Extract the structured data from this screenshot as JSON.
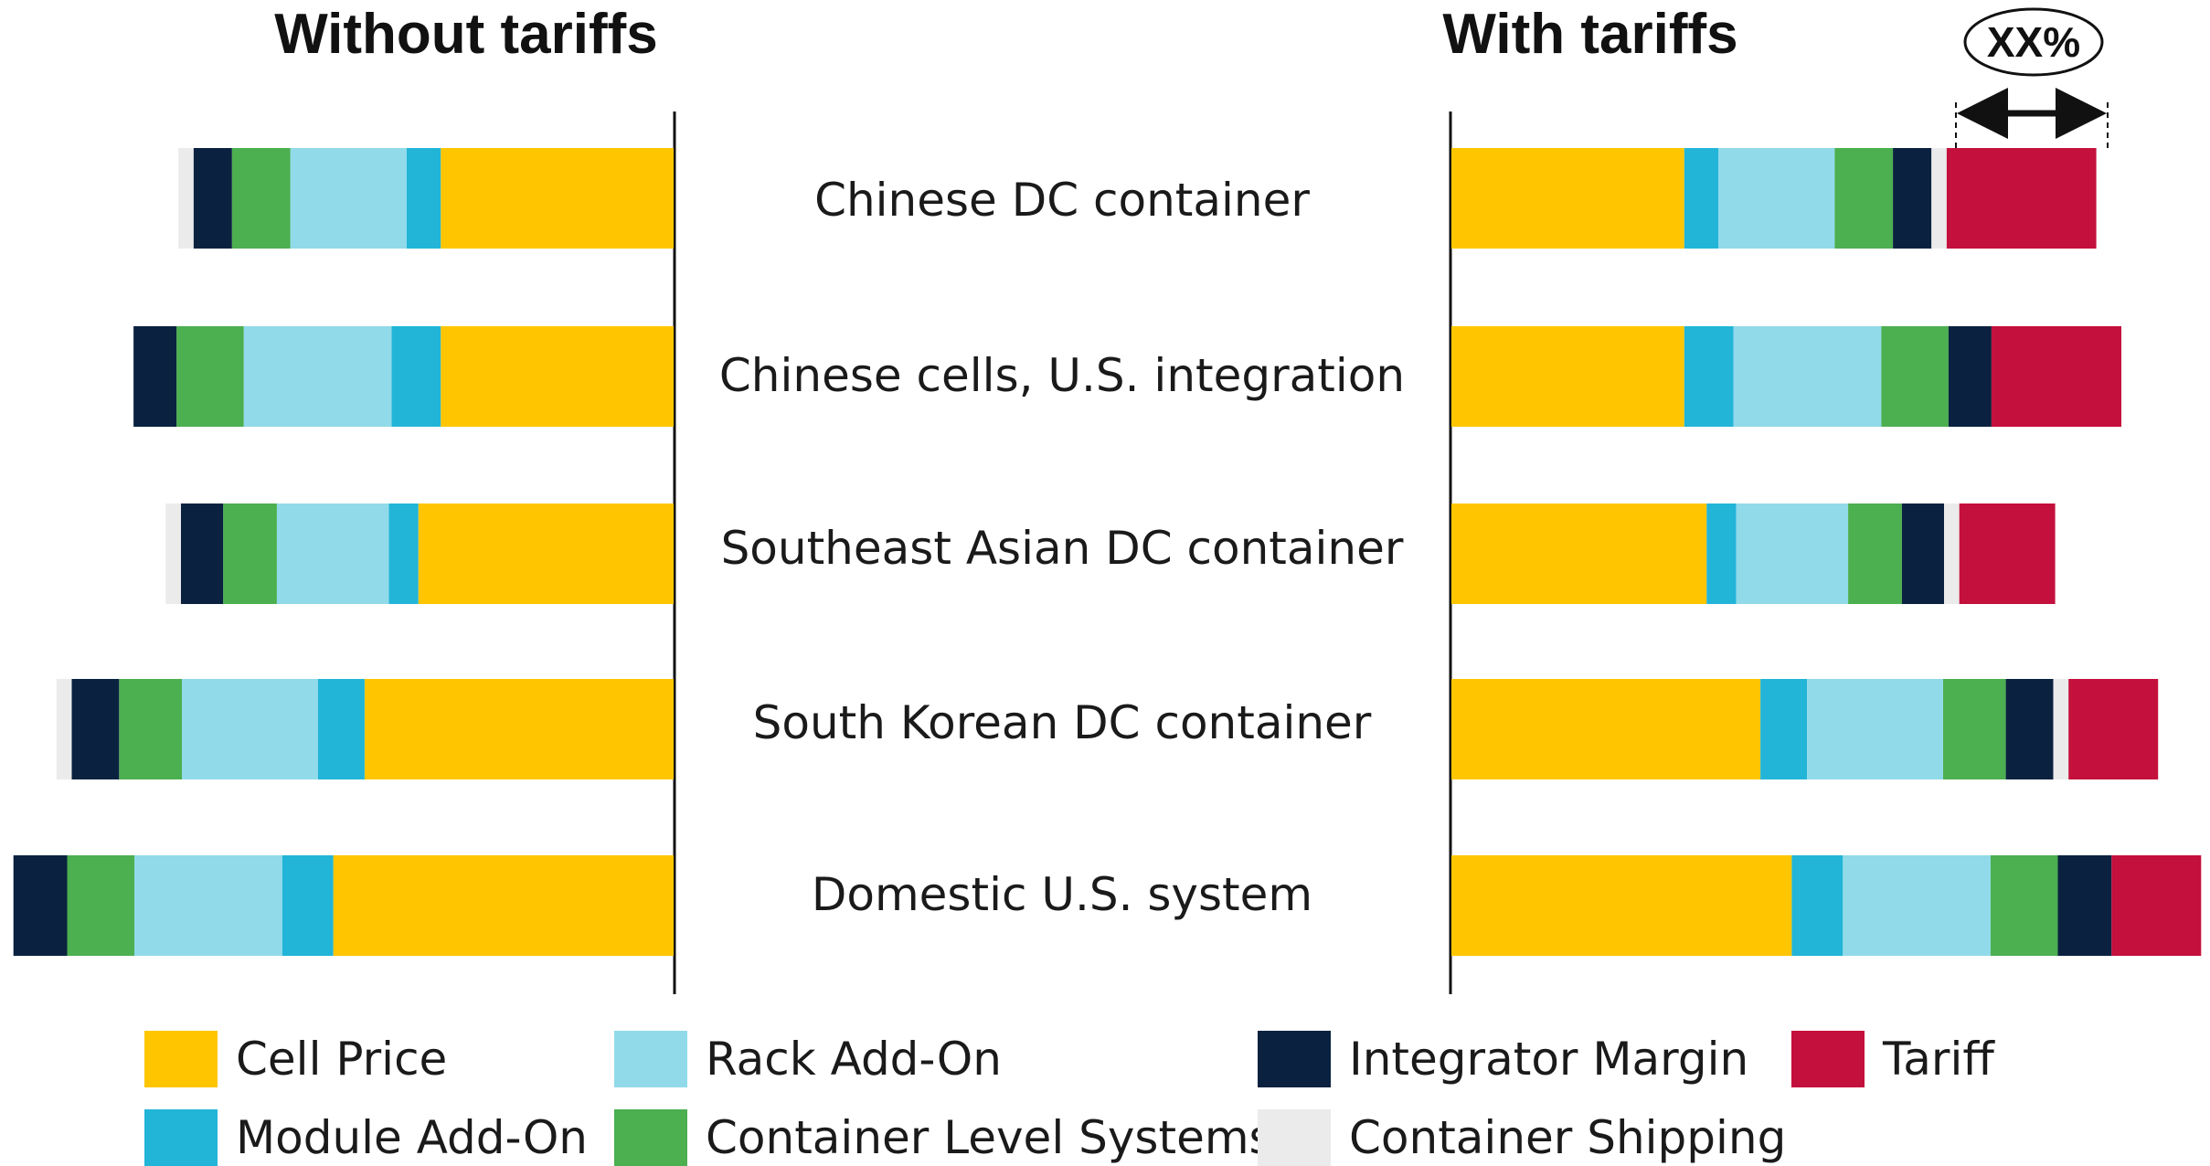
{
  "chart_data": {
    "type": "bar",
    "orientation": "horizontal-stacked",
    "panels": [
      {
        "key": "without",
        "title": "Without tariffs"
      },
      {
        "key": "with",
        "title": "With tariffs"
      }
    ],
    "categories": [
      "Chinese DC container",
      "Chinese cells, U.S. integration",
      "Southeast Asian DC container",
      "South Korean DC container",
      "Domestic U.S. system"
    ],
    "series": [
      {
        "key": "cell",
        "name": "Cell Price",
        "color": "#FFC600",
        "without": [
          260,
          260,
          285,
          345,
          380
        ],
        "with": [
          260,
          260,
          285,
          345,
          380
        ]
      },
      {
        "key": "module",
        "name": "Module Add-On",
        "color": "#22B5D8",
        "without": [
          38,
          55,
          33,
          52,
          57
        ],
        "with": [
          38,
          55,
          33,
          52,
          57
        ]
      },
      {
        "key": "rack",
        "name": "Rack Add-On",
        "color": "#91DAE9",
        "without": [
          130,
          165,
          125,
          152,
          165
        ],
        "with": [
          130,
          165,
          125,
          152,
          165
        ]
      },
      {
        "key": "container",
        "name": "Container Level Systems",
        "color": "#4CAF50",
        "without": [
          65,
          75,
          60,
          70,
          75
        ],
        "with": [
          65,
          75,
          60,
          70,
          75
        ]
      },
      {
        "key": "integrator",
        "name": "Integrator Margin",
        "color": "#0A2240",
        "without": [
          43,
          48,
          47,
          53,
          60
        ],
        "with": [
          43,
          48,
          47,
          53,
          60
        ]
      },
      {
        "key": "shipping",
        "name": "Container Shipping",
        "color": "#EBEBEB",
        "without": [
          17,
          0,
          17,
          17,
          0
        ],
        "with": [
          17,
          0,
          17,
          17,
          0
        ]
      },
      {
        "key": "tariff",
        "name": "Tariff",
        "color": "#C4103C",
        "without": [
          0,
          0,
          0,
          0,
          0
        ],
        "with": [
          167,
          145,
          107,
          100,
          100
        ]
      }
    ],
    "legend": {
      "position": "bottom",
      "rows": [
        [
          "cell",
          "rack",
          "integrator",
          "tariff"
        ],
        [
          "module",
          "container",
          "shipping"
        ]
      ]
    },
    "annotation": {
      "text": "XX%",
      "target": "Chinese DC container tariff segment"
    }
  }
}
